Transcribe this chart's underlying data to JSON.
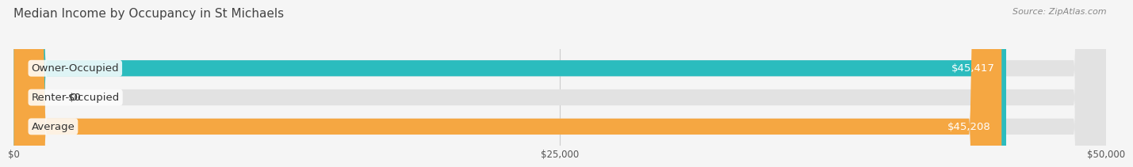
{
  "title": "Median Income by Occupancy in St Michaels",
  "source": "Source: ZipAtlas.com",
  "categories": [
    "Owner-Occupied",
    "Renter-Occupied",
    "Average"
  ],
  "values": [
    45417,
    0,
    45208
  ],
  "bar_colors": [
    "#2bbcbe",
    "#c9a9d4",
    "#f5a742"
  ],
  "bar_labels": [
    "$45,417",
    "$0",
    "$45,208"
  ],
  "xlim": [
    0,
    50000
  ],
  "xticks": [
    0,
    25000,
    50000
  ],
  "xticklabels": [
    "$0",
    "$25,000",
    "$50,000"
  ],
  "bg_color": "#f5f5f5",
  "bar_bg_color": "#e2e2e2",
  "label_color": "#333333",
  "title_color": "#444444",
  "source_color": "#888888",
  "bar_height": 0.55,
  "label_fontsize": 9.5,
  "title_fontsize": 11,
  "value_fontsize": 9.5
}
